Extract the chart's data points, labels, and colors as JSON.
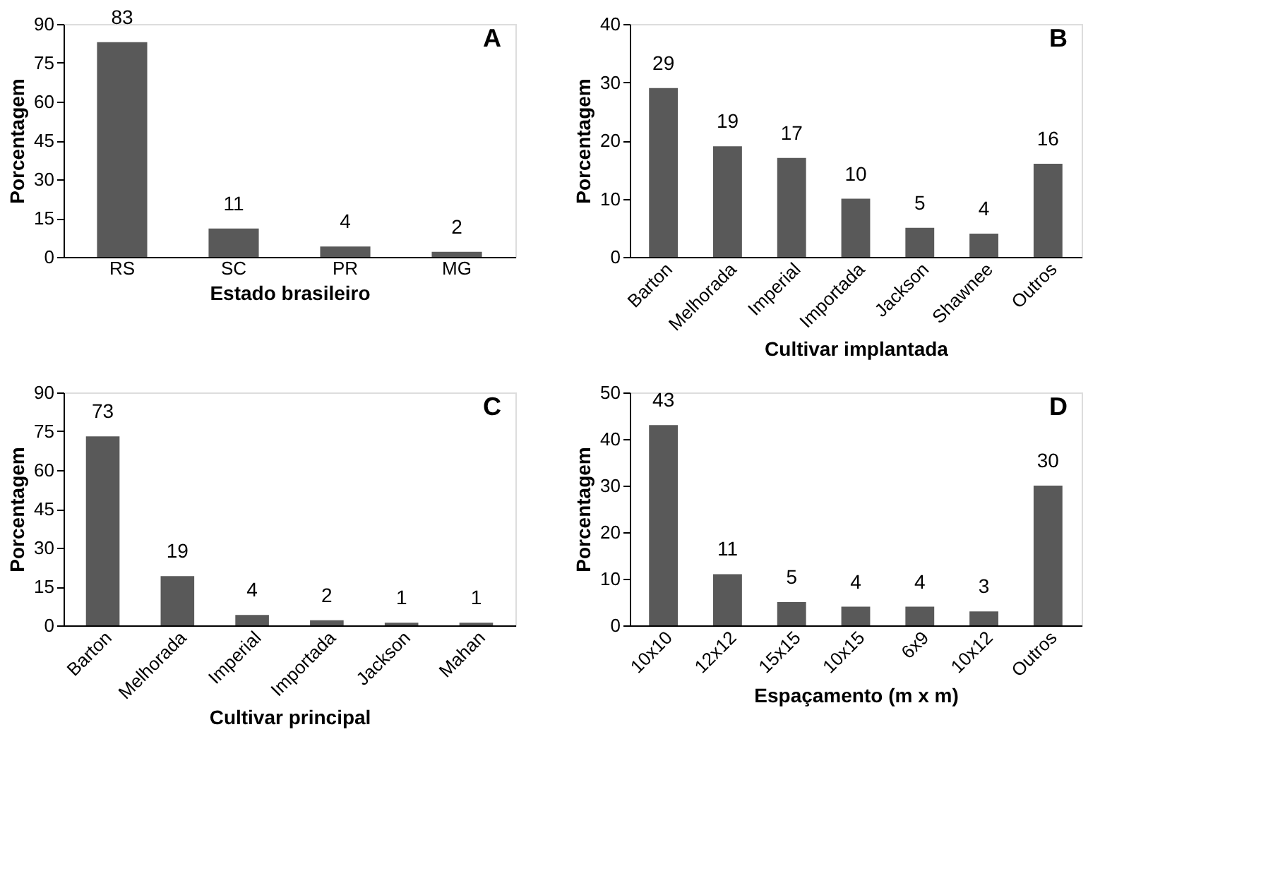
{
  "chart_data": [
    {
      "type": "bar",
      "title": "A",
      "xlabel": "Estado brasileiro",
      "ylabel": "Porcentagem",
      "categories": [
        "RS",
        "SC",
        "PR",
        "MG"
      ],
      "values": [
        83,
        11,
        4,
        2
      ],
      "color": "#595959",
      "ylim": [
        0,
        90
      ],
      "yticks": [
        0,
        15,
        30,
        45,
        60,
        75,
        90
      ],
      "data_labels": true,
      "grid": false
    },
    {
      "type": "bar",
      "title": "B",
      "xlabel": "Cultivar implantada",
      "ylabel": "Porcentagem",
      "categories": [
        "Barton",
        "Melhorada",
        "Imperial",
        "Importada",
        "Jackson",
        "Shawnee",
        "Outros"
      ],
      "values": [
        29,
        19,
        17,
        10,
        5,
        4,
        16
      ],
      "color": "#595959",
      "ylim": [
        0,
        40
      ],
      "yticks": [
        0,
        10,
        20,
        30,
        40
      ],
      "data_labels": true,
      "grid": false
    },
    {
      "type": "bar",
      "title": "C",
      "xlabel": "Cultivar principal",
      "ylabel": "Porcentagem",
      "categories": [
        "Barton",
        "Melhorada",
        "Imperial",
        "Importada",
        "Jackson",
        "Mahan"
      ],
      "values": [
        73,
        19,
        4,
        2,
        1,
        1
      ],
      "color": "#595959",
      "ylim": [
        0,
        90
      ],
      "yticks": [
        0,
        15,
        30,
        45,
        60,
        75,
        90
      ],
      "data_labels": true,
      "grid": false
    },
    {
      "type": "bar",
      "title": "D",
      "xlabel": "Espaçamento (m x m)",
      "ylabel": "Porcentagem",
      "categories": [
        "10x10",
        "12x12",
        "15x15",
        "10x15",
        "6x9",
        "10x12",
        "Outros"
      ],
      "values": [
        43,
        11,
        5,
        4,
        4,
        3,
        30
      ],
      "color": "#595959",
      "ylim": [
        0,
        50
      ],
      "yticks": [
        0,
        10,
        20,
        30,
        40,
        50
      ],
      "data_labels": true,
      "grid": false
    }
  ]
}
